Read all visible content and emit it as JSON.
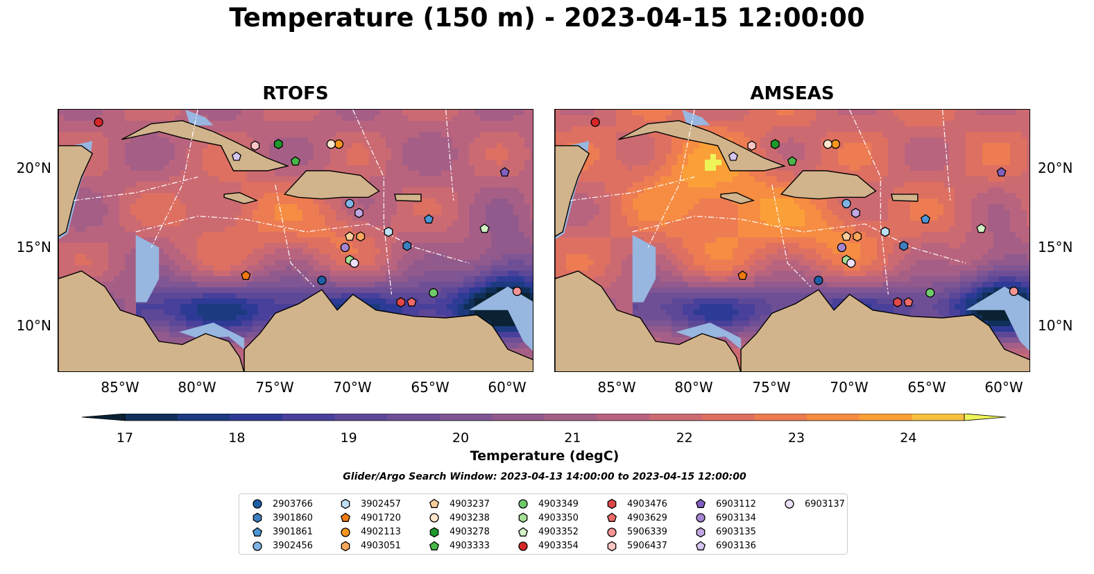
{
  "suptitle": "Temperature (150 m) - 2023-04-15 12:00:00",
  "panels": [
    {
      "title": "RTOFS"
    },
    {
      "title": "AMSEAS"
    }
  ],
  "lat_ticks": [
    "20°N",
    "15°N",
    "10°N"
  ],
  "lon_ticks": [
    "85°W",
    "80°W",
    "75°W",
    "70°W",
    "65°W",
    "60°W"
  ],
  "map_extent": {
    "lon_min": -89,
    "lon_max": -58.3,
    "lat_min": 7,
    "lat_max": 23.8
  },
  "colorbar": {
    "label": "Temperature (degC)",
    "ticks": [
      "17",
      "18",
      "19",
      "20",
      "21",
      "22",
      "23",
      "24"
    ],
    "vmin": 16.5,
    "vmax": 24.5,
    "step": 0.5,
    "colors": [
      "#0a2233",
      "#10305a",
      "#1c3a80",
      "#2e3b96",
      "#48409a",
      "#5d4897",
      "#6e4f96",
      "#7f5593",
      "#925a8c",
      "#a55f86",
      "#b9647e",
      "#cc6a72",
      "#de7062",
      "#ed7c52",
      "#f68d42",
      "#fba038",
      "#f7be40"
    ],
    "extend_max_color": "#eef458"
  },
  "search_window": "Glider/Argo Search Window: 2023-04-13 14:00:00 to 2023-04-15 12:00:00",
  "colors": {
    "land": "#d2b48c",
    "shallow": "#97b6e0"
  },
  "legend": [
    {
      "id": "2903766",
      "marker": "circle",
      "color": "#1f5fa8"
    },
    {
      "id": "3901860",
      "marker": "hexagon",
      "color": "#3d7fc0"
    },
    {
      "id": "3901861",
      "marker": "pentagon",
      "color": "#4d96d6"
    },
    {
      "id": "3902456",
      "marker": "circle",
      "color": "#7fb4e6"
    },
    {
      "id": "3902457",
      "marker": "hexagon",
      "color": "#bde0f5"
    },
    {
      "id": "4901720",
      "marker": "pentagon",
      "color": "#ef7a12"
    },
    {
      "id": "4902113",
      "marker": "circle",
      "color": "#f8961e"
    },
    {
      "id": "4903051",
      "marker": "hexagon",
      "color": "#fba85c"
    },
    {
      "id": "4903237",
      "marker": "pentagon",
      "color": "#fbcf9c"
    },
    {
      "id": "4903238",
      "marker": "circle",
      "color": "#fde5cb"
    },
    {
      "id": "4903278",
      "marker": "hexagon",
      "color": "#1e9a2c"
    },
    {
      "id": "4903333",
      "marker": "pentagon",
      "color": "#48b848"
    },
    {
      "id": "4903349",
      "marker": "circle",
      "color": "#6fcb6a"
    },
    {
      "id": "4903350",
      "marker": "hexagon",
      "color": "#a4df95"
    },
    {
      "id": "4903352",
      "marker": "pentagon",
      "color": "#d2f2c6"
    },
    {
      "id": "4903354",
      "marker": "circle",
      "color": "#d62728"
    },
    {
      "id": "4903476",
      "marker": "hexagon",
      "color": "#e04848"
    },
    {
      "id": "4903629",
      "marker": "pentagon",
      "color": "#f06a6a"
    },
    {
      "id": "5906339",
      "marker": "circle",
      "color": "#f79595"
    },
    {
      "id": "5906437",
      "marker": "hexagon",
      "color": "#fbc5c5"
    },
    {
      "id": "6903112",
      "marker": "pentagon",
      "color": "#8060c0"
    },
    {
      "id": "6903134",
      "marker": "circle",
      "color": "#a585d2"
    },
    {
      "id": "6903135",
      "marker": "hexagon",
      "color": "#c1a8e2"
    },
    {
      "id": "6903136",
      "marker": "pentagon",
      "color": "#d7c6ef"
    },
    {
      "id": "6903137",
      "marker": "circle",
      "color": "#ecdffa"
    }
  ],
  "floats": [
    {
      "id": "2903766",
      "lon": -72.0,
      "lat": 12.9
    },
    {
      "id": "3901860",
      "lon": -66.5,
      "lat": 15.1
    },
    {
      "id": "3901861",
      "lon": -65.1,
      "lat": 16.8
    },
    {
      "id": "3902456",
      "lon": -70.2,
      "lat": 17.8
    },
    {
      "id": "3902457",
      "lon": -67.7,
      "lat": 16.0
    },
    {
      "id": "4901720",
      "lon": -76.9,
      "lat": 13.2
    },
    {
      "id": "4902113",
      "lon": -70.9,
      "lat": 21.6
    },
    {
      "id": "4903051",
      "lon": -69.5,
      "lat": 15.7
    },
    {
      "id": "4903237",
      "lon": -70.2,
      "lat": 15.7
    },
    {
      "id": "4903238",
      "lon": -71.4,
      "lat": 21.6
    },
    {
      "id": "4903278",
      "lon": -74.8,
      "lat": 21.6
    },
    {
      "id": "4903333",
      "lon": -73.7,
      "lat": 20.5
    },
    {
      "id": "4903349",
      "lon": -64.8,
      "lat": 12.1
    },
    {
      "id": "4903350",
      "lon": -70.2,
      "lat": 14.2
    },
    {
      "id": "4903352",
      "lon": -61.5,
      "lat": 16.2
    },
    {
      "id": "4903354",
      "lon": -86.4,
      "lat": 23.0
    },
    {
      "id": "4903476",
      "lon": -66.9,
      "lat": 11.5
    },
    {
      "id": "4903629",
      "lon": -66.2,
      "lat": 11.5
    },
    {
      "id": "5906339",
      "lon": -59.4,
      "lat": 12.2
    },
    {
      "id": "5906437",
      "lon": -76.3,
      "lat": 21.5
    },
    {
      "id": "6903112",
      "lon": -60.2,
      "lat": 19.8
    },
    {
      "id": "6903134",
      "lon": -70.5,
      "lat": 15.0
    },
    {
      "id": "6903135",
      "lon": -69.6,
      "lat": 17.2
    },
    {
      "id": "6903136",
      "lon": -77.5,
      "lat": 20.8
    },
    {
      "id": "6903137",
      "lon": -69.9,
      "lat": 14.0
    }
  ]
}
